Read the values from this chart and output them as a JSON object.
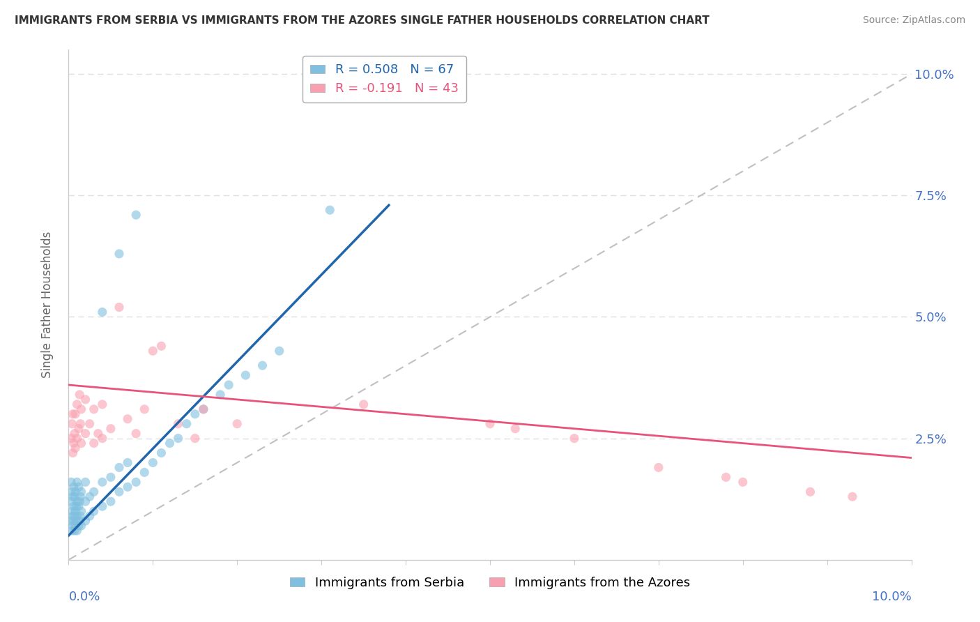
{
  "title": "IMMIGRANTS FROM SERBIA VS IMMIGRANTS FROM THE AZORES SINGLE FATHER HOUSEHOLDS CORRELATION CHART",
  "source": "Source: ZipAtlas.com",
  "ylabel": "Single Father Households",
  "ytick_vals": [
    0.025,
    0.05,
    0.075,
    0.1
  ],
  "xlim": [
    0.0,
    0.1
  ],
  "ylim": [
    0.0,
    0.105
  ],
  "serbia_color": "#7fbfdf",
  "azores_color": "#f9a0b0",
  "serbia_R": 0.508,
  "serbia_N": 67,
  "azores_R": -0.191,
  "azores_N": 43,
  "serbia_line_color": "#2166ac",
  "azores_line_color": "#e8537a",
  "serbia_line": [
    [
      0.0,
      0.005
    ],
    [
      0.038,
      0.073
    ]
  ],
  "azores_line": [
    [
      0.0,
      0.036
    ],
    [
      0.1,
      0.021
    ]
  ],
  "serbia_scatter": [
    [
      0.0002,
      0.008
    ],
    [
      0.0003,
      0.012
    ],
    [
      0.0003,
      0.016
    ],
    [
      0.0004,
      0.006
    ],
    [
      0.0004,
      0.01
    ],
    [
      0.0004,
      0.014
    ],
    [
      0.0005,
      0.007
    ],
    [
      0.0005,
      0.009
    ],
    [
      0.0005,
      0.013
    ],
    [
      0.0006,
      0.008
    ],
    [
      0.0006,
      0.011
    ],
    [
      0.0006,
      0.015
    ],
    [
      0.0007,
      0.006
    ],
    [
      0.0007,
      0.009
    ],
    [
      0.0007,
      0.013
    ],
    [
      0.0008,
      0.007
    ],
    [
      0.0008,
      0.01
    ],
    [
      0.0008,
      0.014
    ],
    [
      0.0009,
      0.008
    ],
    [
      0.0009,
      0.011
    ],
    [
      0.001,
      0.006
    ],
    [
      0.001,
      0.009
    ],
    [
      0.001,
      0.012
    ],
    [
      0.001,
      0.016
    ],
    [
      0.0012,
      0.007
    ],
    [
      0.0012,
      0.011
    ],
    [
      0.0012,
      0.015
    ],
    [
      0.0013,
      0.008
    ],
    [
      0.0013,
      0.012
    ],
    [
      0.0014,
      0.009
    ],
    [
      0.0014,
      0.013
    ],
    [
      0.0015,
      0.007
    ],
    [
      0.0015,
      0.01
    ],
    [
      0.0015,
      0.014
    ],
    [
      0.002,
      0.008
    ],
    [
      0.002,
      0.012
    ],
    [
      0.002,
      0.016
    ],
    [
      0.0025,
      0.009
    ],
    [
      0.0025,
      0.013
    ],
    [
      0.003,
      0.01
    ],
    [
      0.003,
      0.014
    ],
    [
      0.004,
      0.011
    ],
    [
      0.004,
      0.016
    ],
    [
      0.005,
      0.012
    ],
    [
      0.005,
      0.017
    ],
    [
      0.006,
      0.014
    ],
    [
      0.006,
      0.019
    ],
    [
      0.007,
      0.015
    ],
    [
      0.007,
      0.02
    ],
    [
      0.008,
      0.016
    ],
    [
      0.009,
      0.018
    ],
    [
      0.01,
      0.02
    ],
    [
      0.011,
      0.022
    ],
    [
      0.012,
      0.024
    ],
    [
      0.013,
      0.025
    ],
    [
      0.014,
      0.028
    ],
    [
      0.015,
      0.03
    ],
    [
      0.016,
      0.031
    ],
    [
      0.018,
      0.034
    ],
    [
      0.019,
      0.036
    ],
    [
      0.021,
      0.038
    ],
    [
      0.023,
      0.04
    ],
    [
      0.025,
      0.043
    ],
    [
      0.031,
      0.072
    ],
    [
      0.004,
      0.051
    ],
    [
      0.006,
      0.063
    ],
    [
      0.008,
      0.071
    ]
  ],
  "azores_scatter": [
    [
      0.0003,
      0.025
    ],
    [
      0.0004,
      0.028
    ],
    [
      0.0005,
      0.022
    ],
    [
      0.0005,
      0.03
    ],
    [
      0.0006,
      0.024
    ],
    [
      0.0007,
      0.026
    ],
    [
      0.0008,
      0.023
    ],
    [
      0.0008,
      0.03
    ],
    [
      0.001,
      0.025
    ],
    [
      0.001,
      0.032
    ],
    [
      0.0012,
      0.027
    ],
    [
      0.0013,
      0.034
    ],
    [
      0.0014,
      0.028
    ],
    [
      0.0015,
      0.024
    ],
    [
      0.0015,
      0.031
    ],
    [
      0.002,
      0.026
    ],
    [
      0.002,
      0.033
    ],
    [
      0.0025,
      0.028
    ],
    [
      0.003,
      0.024
    ],
    [
      0.003,
      0.031
    ],
    [
      0.0035,
      0.026
    ],
    [
      0.004,
      0.025
    ],
    [
      0.004,
      0.032
    ],
    [
      0.005,
      0.027
    ],
    [
      0.006,
      0.052
    ],
    [
      0.007,
      0.029
    ],
    [
      0.008,
      0.026
    ],
    [
      0.009,
      0.031
    ],
    [
      0.01,
      0.043
    ],
    [
      0.011,
      0.044
    ],
    [
      0.013,
      0.028
    ],
    [
      0.015,
      0.025
    ],
    [
      0.016,
      0.031
    ],
    [
      0.02,
      0.028
    ],
    [
      0.035,
      0.032
    ],
    [
      0.05,
      0.028
    ],
    [
      0.053,
      0.027
    ],
    [
      0.06,
      0.025
    ],
    [
      0.07,
      0.019
    ],
    [
      0.078,
      0.017
    ],
    [
      0.08,
      0.016
    ],
    [
      0.088,
      0.014
    ],
    [
      0.093,
      0.013
    ]
  ]
}
